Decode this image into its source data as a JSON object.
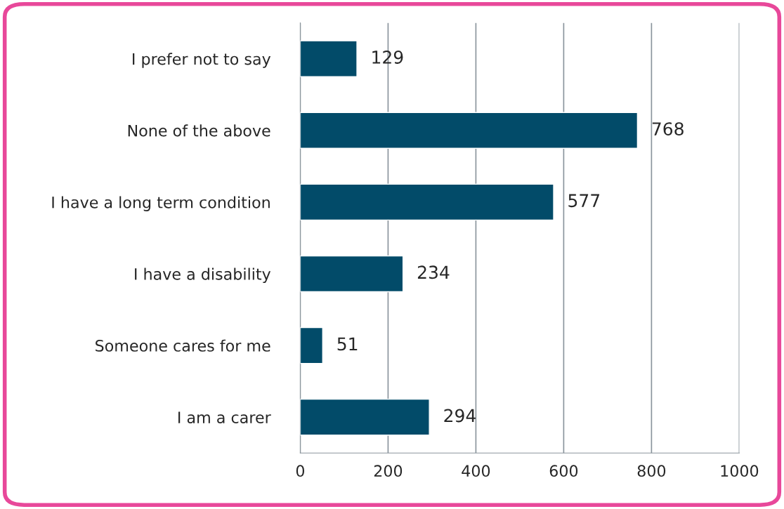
{
  "chart_data": {
    "type": "bar",
    "orientation": "horizontal",
    "categories": [
      "I prefer not to say",
      "None of the above",
      "I have a long term condition",
      "I have a disability",
      "Someone cares for me",
      "I am a carer"
    ],
    "values": [
      129,
      768,
      577,
      234,
      51,
      294
    ],
    "color": "#024b69",
    "xlim": [
      0,
      1000
    ],
    "xticks": [
      0,
      200,
      400,
      600,
      800,
      1000
    ],
    "grid": "x",
    "data_labels": true
  }
}
